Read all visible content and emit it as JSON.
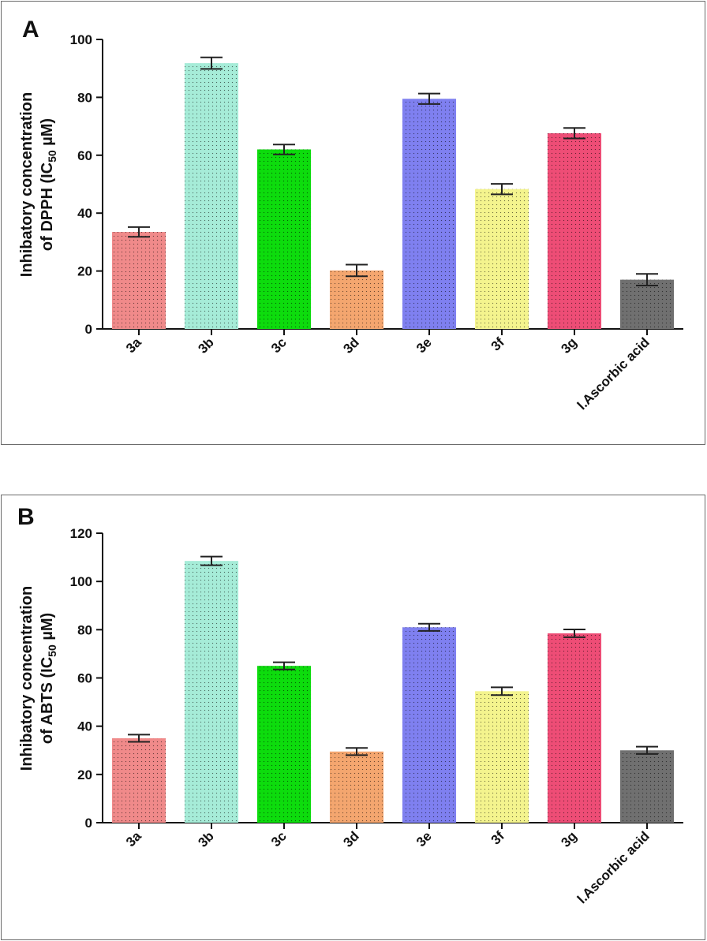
{
  "chart_data": [
    {
      "panel": "A",
      "type": "bar",
      "ylabel_line1": "Inhibatory concentration",
      "ylabel_line2_prefix": "of DPPH (IC",
      "ylabel_sub": "50",
      "ylabel_suffix": " µM)",
      "categories": [
        "3a",
        "3b",
        "3c",
        "3d",
        "3e",
        "3f",
        "3g",
        "l.Ascorbic acid"
      ],
      "values": [
        33.5,
        91.8,
        62.0,
        20.2,
        79.5,
        48.3,
        67.6,
        17.0
      ],
      "errors": [
        1.7,
        2.0,
        1.7,
        2.0,
        1.8,
        1.8,
        1.8,
        2.0
      ],
      "colors": [
        "#f08a8a",
        "#a6ecd8",
        "#0ddc0d",
        "#f4a66f",
        "#7f80f0",
        "#f4f48e",
        "#ee4d76",
        "#707070"
      ],
      "ylim": [
        0,
        100
      ],
      "yticks": [
        0,
        20,
        40,
        60,
        80,
        100
      ]
    },
    {
      "panel": "B",
      "type": "bar",
      "ylabel_line1": "Inhibatory concentration",
      "ylabel_line2_prefix": "of ABTS (IC",
      "ylabel_sub": "50",
      "ylabel_suffix": " µM)",
      "categories": [
        "3a",
        "3b",
        "3c",
        "3d",
        "3e",
        "3f",
        "3g",
        "l.Ascorbic acid"
      ],
      "values": [
        35.0,
        108.5,
        65.0,
        29.5,
        81.0,
        54.5,
        78.5,
        30.0
      ],
      "errors": [
        1.5,
        1.8,
        1.5,
        1.5,
        1.5,
        1.6,
        1.6,
        1.5
      ],
      "colors": [
        "#f08a8a",
        "#a6ecd8",
        "#0ddc0d",
        "#f4a66f",
        "#7f80f0",
        "#f4f48e",
        "#ee4d76",
        "#707070"
      ],
      "ylim": [
        0,
        120
      ],
      "yticks": [
        0,
        20,
        40,
        60,
        80,
        100,
        120
      ]
    }
  ]
}
